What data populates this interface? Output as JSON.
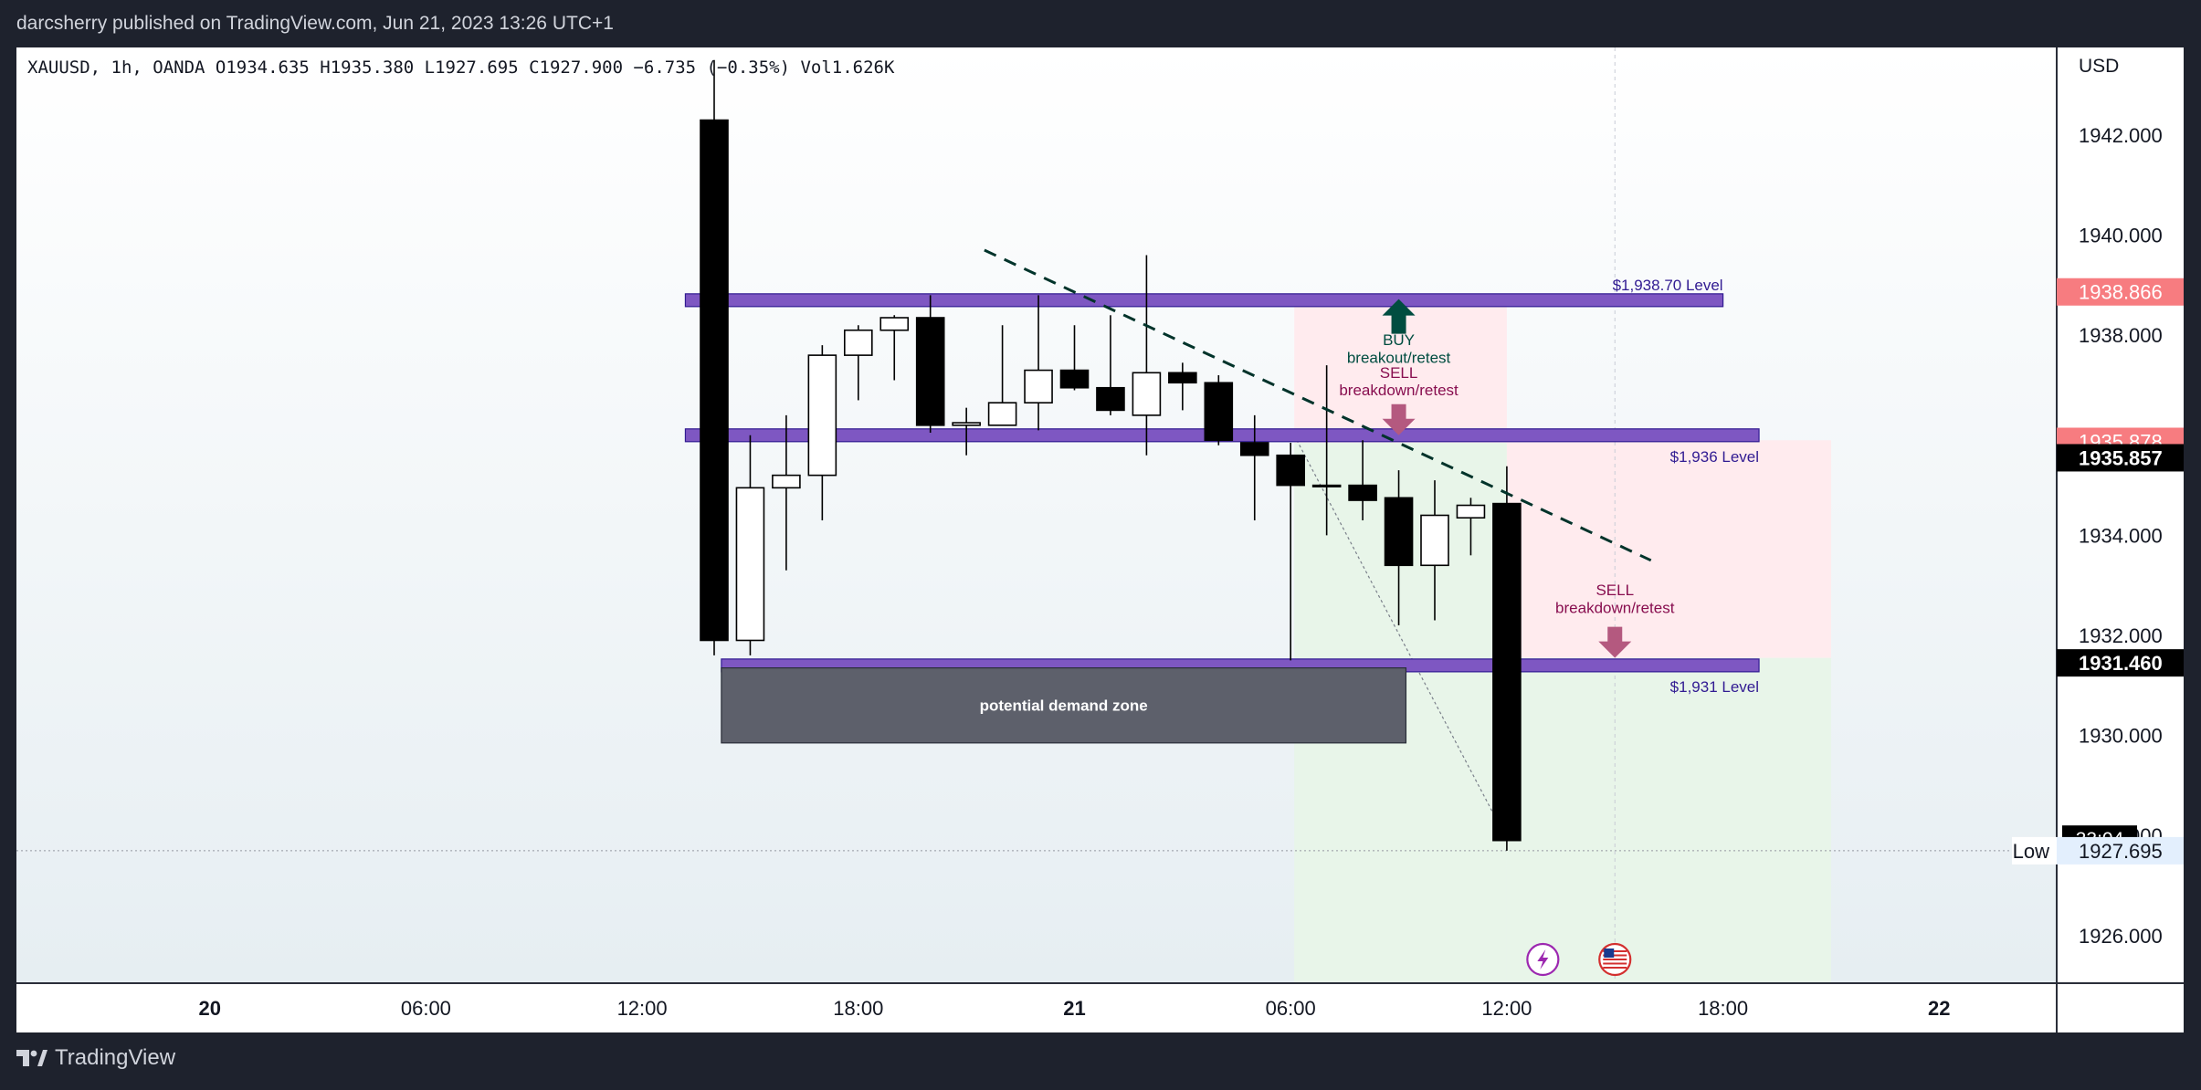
{
  "header": {
    "publisher_line": "darcsherry published on TradingView.com, Jun 21, 2023 13:26 UTC+1"
  },
  "legend": {
    "text": "XAUUSD, 1h, OANDA  O1934.635  H1935.380  L1927.695  C1927.900  −6.735 (−0.35%)  Vol1.626K"
  },
  "footer": {
    "brand": "TradingView"
  },
  "chart_data": {
    "type": "candlestick",
    "symbol": "XAUUSD",
    "timeframe": "1h",
    "exchange": "OANDA",
    "ohlc_readout": {
      "open": 1934.635,
      "high": 1935.38,
      "low": 1927.695,
      "close": 1927.9,
      "change": -6.735,
      "change_pct": -0.35,
      "volume": "1.626K"
    },
    "currency_label": "USD",
    "y_ticks": [
      "1942.000",
      "1940.000",
      "1938.000",
      "1934.000",
      "1932.000",
      "1930.000",
      "1926.000"
    ],
    "x_ticks": [
      {
        "label": "20",
        "t": -2,
        "bold": true
      },
      {
        "label": "06:00",
        "t": 4,
        "bold": false
      },
      {
        "label": "12:00",
        "t": 10,
        "bold": false
      },
      {
        "label": "18:00",
        "t": 16,
        "bold": false
      },
      {
        "label": "21",
        "t": 22,
        "bold": true
      },
      {
        "label": "06:00",
        "t": 28,
        "bold": false
      },
      {
        "label": "12:00",
        "t": 34,
        "bold": false
      },
      {
        "label": "18:00",
        "t": 40,
        "bold": false
      },
      {
        "label": "22",
        "t": 46,
        "bold": true
      }
    ],
    "candles": [
      {
        "t": 12,
        "o": 1942.3,
        "h": 1943.5,
        "l": 1931.6,
        "c": 1931.9
      },
      {
        "t": 13,
        "o": 1931.9,
        "h": 1936.0,
        "l": 1931.6,
        "c": 1934.95
      },
      {
        "t": 14,
        "o": 1934.95,
        "h": 1936.4,
        "l": 1933.3,
        "c": 1935.2
      },
      {
        "t": 15,
        "o": 1935.2,
        "h": 1937.8,
        "l": 1934.3,
        "c": 1937.6
      },
      {
        "t": 16,
        "o": 1937.6,
        "h": 1938.2,
        "l": 1936.7,
        "c": 1938.1
      },
      {
        "t": 17,
        "o": 1938.1,
        "h": 1938.4,
        "l": 1937.1,
        "c": 1938.35
      },
      {
        "t": 18,
        "o": 1938.35,
        "h": 1938.8,
        "l": 1936.05,
        "c": 1936.2
      },
      {
        "t": 19,
        "o": 1936.2,
        "h": 1936.55,
        "l": 1935.6,
        "c": 1936.25
      },
      {
        "t": 20,
        "o": 1936.2,
        "h": 1938.2,
        "l": 1936.2,
        "c": 1936.65
      },
      {
        "t": 21,
        "o": 1936.65,
        "h": 1938.8,
        "l": 1936.1,
        "c": 1937.3
      },
      {
        "t": 22,
        "o": 1937.3,
        "h": 1938.2,
        "l": 1936.9,
        "c": 1936.95
      },
      {
        "t": 23,
        "o": 1936.95,
        "h": 1938.4,
        "l": 1936.4,
        "c": 1936.5
      },
      {
        "t": 24,
        "o": 1936.4,
        "h": 1939.6,
        "l": 1935.6,
        "c": 1937.25
      },
      {
        "t": 25,
        "o": 1937.25,
        "h": 1937.45,
        "l": 1936.5,
        "c": 1937.05
      },
      {
        "t": 26,
        "o": 1937.05,
        "h": 1937.2,
        "l": 1935.8,
        "c": 1935.9
      },
      {
        "t": 27,
        "o": 1935.85,
        "h": 1936.4,
        "l": 1934.3,
        "c": 1935.6
      },
      {
        "t": 28,
        "o": 1935.6,
        "h": 1935.85,
        "l": 1931.5,
        "c": 1935.0
      },
      {
        "t": 29,
        "o": 1935.0,
        "h": 1937.4,
        "l": 1934.0,
        "c": 1935.0
      },
      {
        "t": 30,
        "o": 1935.0,
        "h": 1935.9,
        "l": 1934.3,
        "c": 1934.7
      },
      {
        "t": 31,
        "o": 1934.75,
        "h": 1935.3,
        "l": 1932.2,
        "c": 1933.4
      },
      {
        "t": 32,
        "o": 1933.4,
        "h": 1935.1,
        "l": 1932.3,
        "c": 1934.4
      },
      {
        "t": 33,
        "o": 1934.35,
        "h": 1934.75,
        "l": 1933.6,
        "c": 1934.6
      },
      {
        "t": 34,
        "o": 1934.635,
        "h": 1935.38,
        "l": 1927.695,
        "c": 1927.9
      }
    ],
    "levels": [
      {
        "price": 1938.7,
        "label": "$1,938.70 Level",
        "t_start": 11.2,
        "t_end": 40
      },
      {
        "price": 1936.0,
        "label": "$1,936 Level",
        "t_start": 11.2,
        "t_end": 41
      },
      {
        "price": 1931.4,
        "label": "$1,931 Level",
        "t_start": 12.2,
        "t_end": 41
      }
    ],
    "demand_zone": {
      "label": "potential demand zone",
      "t_start": 12.2,
      "t_end": 31.2,
      "top": 1931.35,
      "bottom": 1929.85
    },
    "trendline": {
      "t1": 19.5,
      "p1": 1939.7,
      "t2": 38,
      "p2": 1933.5
    },
    "position_tools": [
      {
        "t_start": 28.1,
        "t_end": 34.0,
        "entry": 1935.85,
        "target": 1938.75,
        "stop": 1925.0
      },
      {
        "t_start": 34.0,
        "t_end": 43.0,
        "entry": 1931.55,
        "target": 1935.9,
        "stop": 1925.0
      }
    ],
    "annotations": [
      {
        "kind": "arrow-up",
        "t": 31.0,
        "price": 1938.65,
        "color": "#004d40"
      },
      {
        "kind": "text",
        "t": 31.0,
        "price": 1937.8,
        "color": "#004d40",
        "text": "BUY"
      },
      {
        "kind": "text",
        "t": 31.0,
        "price": 1937.45,
        "color": "#004d40",
        "text": "breakout/retest"
      },
      {
        "kind": "text",
        "t": 31.0,
        "price": 1937.15,
        "color": "#880e4f",
        "text": "SELL"
      },
      {
        "kind": "text",
        "t": 31.0,
        "price": 1936.8,
        "color": "#880e4f",
        "text": "breakdown/retest"
      },
      {
        "kind": "arrow-down",
        "t": 31.0,
        "price": 1936.0,
        "color": "#b4597f"
      },
      {
        "kind": "text",
        "t": 37.0,
        "price": 1932.8,
        "color": "#880e4f",
        "text": "SELL"
      },
      {
        "kind": "text",
        "t": 37.0,
        "price": 1932.45,
        "color": "#880e4f",
        "text": "breakdown/retest"
      },
      {
        "kind": "arrow-down",
        "t": 37.0,
        "price": 1931.55,
        "color": "#b4597f"
      }
    ],
    "price_labels": [
      {
        "price": 1938.866,
        "text": "1938.866",
        "bg": "#f77c80",
        "fg": "#ffffff"
      },
      {
        "price": 1935.878,
        "text": "1935.878",
        "bg": "#f77c80",
        "fg": "#ffffff"
      },
      {
        "price": 1935.55,
        "text": "1935.857",
        "bg": "#000000",
        "fg": "#ffffff"
      },
      {
        "price": 1931.45,
        "text": "1931.460",
        "bg": "#000000",
        "fg": "#ffffff"
      }
    ],
    "countdown": {
      "text": "33:04",
      "price": 1928.0,
      "tick_text": "1928.000"
    },
    "low_marker": {
      "label": "Low",
      "price": 1927.695,
      "text": "1927.695"
    },
    "event_icons": [
      {
        "icon": "lightning-icon",
        "t": 35.0
      },
      {
        "icon": "us-flag-icon",
        "t": 37.0
      }
    ],
    "colors": {
      "level_fill": "#7e57c2",
      "level_stroke": "#311b92",
      "level_text": "#311b92",
      "trendline": "#00332a",
      "candle_up": "#ffffff",
      "candle_down": "#000000",
      "target_zone": "#ffebee",
      "stop_zone": "#e8f5e9",
      "axis_text": "#131722"
    },
    "grid": false
  }
}
